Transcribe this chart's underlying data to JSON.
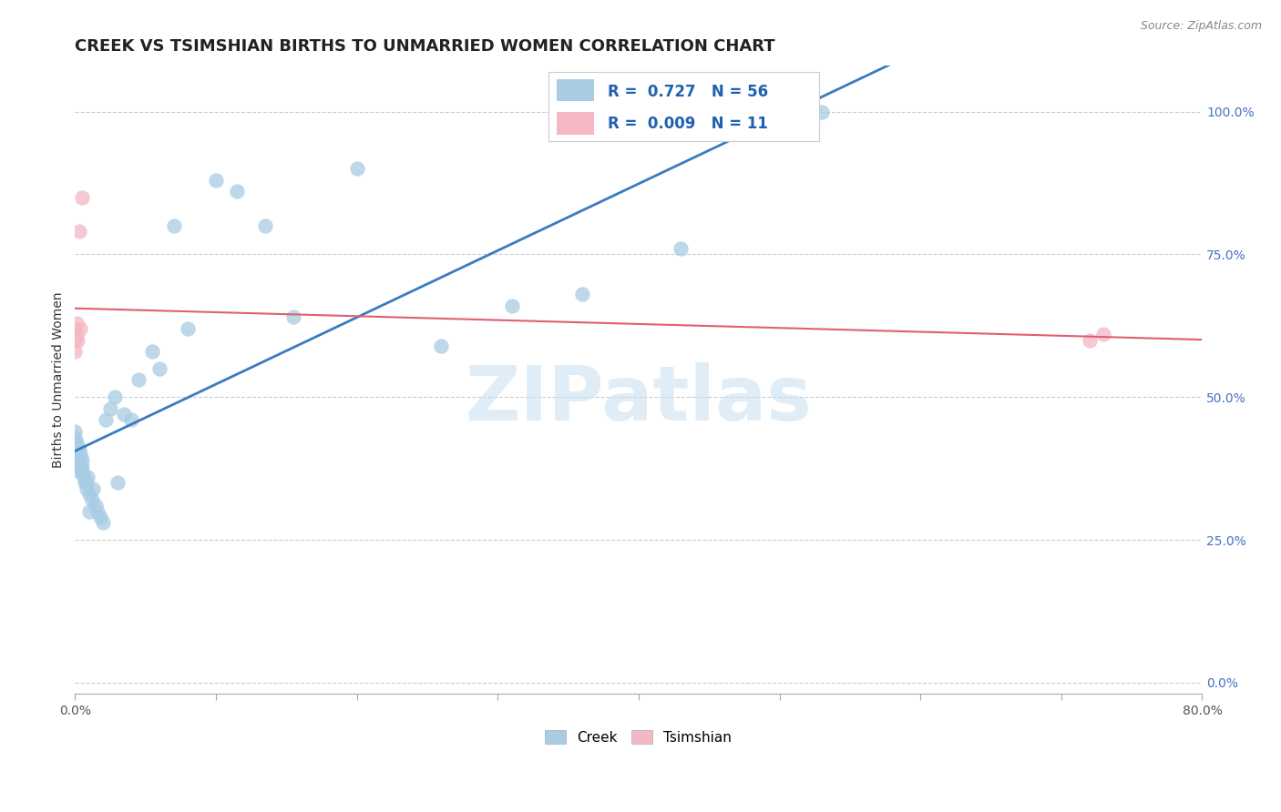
{
  "title": "CREEK VS TSIMSHIAN BIRTHS TO UNMARRIED WOMEN CORRELATION CHART",
  "source": "Source: ZipAtlas.com",
  "ylabel": "Births to Unmarried Women",
  "xlim": [
    0.0,
    0.8
  ],
  "ylim": [
    -0.02,
    1.08
  ],
  "creek_x": [
    0.0,
    0.0,
    0.0,
    0.0,
    0.0,
    0.0,
    0.001,
    0.001,
    0.001,
    0.001,
    0.001,
    0.002,
    0.002,
    0.002,
    0.003,
    0.003,
    0.003,
    0.004,
    0.004,
    0.005,
    0.005,
    0.005,
    0.006,
    0.007,
    0.008,
    0.008,
    0.009,
    0.01,
    0.01,
    0.012,
    0.013,
    0.015,
    0.016,
    0.018,
    0.02,
    0.022,
    0.025,
    0.028,
    0.03,
    0.035,
    0.04,
    0.045,
    0.055,
    0.06,
    0.07,
    0.08,
    0.1,
    0.115,
    0.135,
    0.155,
    0.2,
    0.26,
    0.31,
    0.36,
    0.43,
    0.53
  ],
  "creek_y": [
    0.38,
    0.4,
    0.41,
    0.42,
    0.43,
    0.44,
    0.39,
    0.4,
    0.41,
    0.42,
    0.38,
    0.38,
    0.39,
    0.41,
    0.37,
    0.39,
    0.41,
    0.38,
    0.4,
    0.37,
    0.38,
    0.39,
    0.36,
    0.35,
    0.34,
    0.35,
    0.36,
    0.33,
    0.3,
    0.32,
    0.34,
    0.31,
    0.3,
    0.29,
    0.28,
    0.46,
    0.48,
    0.5,
    0.35,
    0.47,
    0.46,
    0.53,
    0.58,
    0.55,
    0.8,
    0.62,
    0.88,
    0.86,
    0.8,
    0.64,
    0.9,
    0.59,
    0.66,
    0.68,
    0.76,
    1.0
  ],
  "tsimshian_x": [
    0.0,
    0.0,
    0.0,
    0.001,
    0.001,
    0.002,
    0.003,
    0.004,
    0.005,
    0.72,
    0.73
  ],
  "tsimshian_y": [
    0.58,
    0.6,
    0.62,
    0.61,
    0.63,
    0.6,
    0.79,
    0.62,
    0.85,
    0.6,
    0.61
  ],
  "creek_R": 0.727,
  "creek_N": 56,
  "tsimshian_R": 0.009,
  "tsimshian_N": 11,
  "creek_color": "#a8cce4",
  "tsimshian_color": "#f4b8c4",
  "creek_line_color": "#3a7bbf",
  "tsimshian_line_color": "#e06070",
  "legend_creek_color": "#a8cce4",
  "legend_tsim_color": "#f4b8c4",
  "legend_text_color": "#2060b0",
  "watermark": "ZIPatlas",
  "watermark_color": "#c8dff0",
  "grid_color": "#cccccc",
  "right_tick_color": "#4472c4",
  "title_fontsize": 13,
  "source_fontsize": 9,
  "axis_label_fontsize": 10,
  "tick_fontsize": 10,
  "legend_fontsize": 12
}
